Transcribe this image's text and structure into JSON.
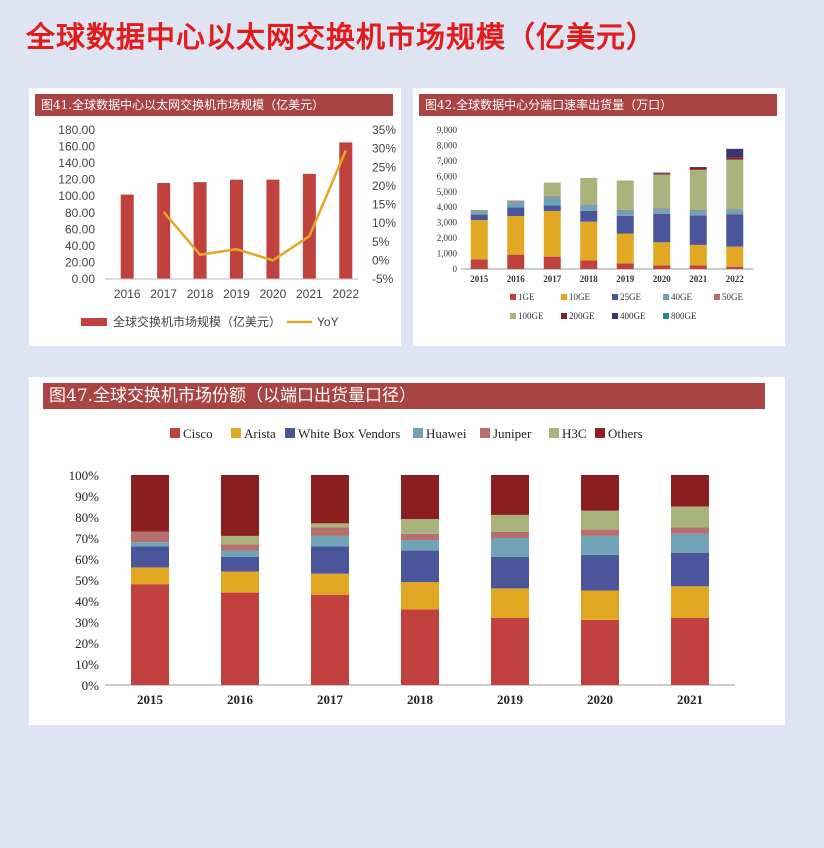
{
  "page_title": "全球数据中心以太网交换机市场规模（亿美元）",
  "colors": {
    "page_title": "#e21b1b",
    "header_bg": "#a94442",
    "bar_red": "#c0413d",
    "yoy_line": "#e3a823"
  },
  "chart_data": [
    {
      "id": "fig41",
      "type": "bar",
      "title": "图41.全球数据中心以太网交换机市场规模（亿美元）",
      "categories": [
        "2016",
        "2017",
        "2018",
        "2019",
        "2020",
        "2021",
        "2022"
      ],
      "series": [
        {
          "name": "全球交换机市场规模（亿美元）",
          "type": "bar",
          "axis": "left",
          "values": [
            102,
            116,
            117,
            120,
            120,
            127,
            165
          ]
        },
        {
          "name": "YoY",
          "type": "line",
          "axis": "right",
          "values": [
            null,
            13.0,
            1.5,
            3.0,
            0.0,
            6.5,
            29.5
          ]
        }
      ],
      "y_left": {
        "min": 0,
        "max": 180,
        "ticks": [
          "0.00",
          "20.00",
          "40.00",
          "60.00",
          "80.00",
          "100.00",
          "120.00",
          "140.00",
          "160.00",
          "180.00"
        ]
      },
      "y_right": {
        "min": -5,
        "max": 35,
        "ticks": [
          "-5%",
          "0%",
          "5%",
          "10%",
          "15%",
          "20%",
          "25%",
          "30%",
          "35%"
        ]
      },
      "legend_position": "bottom",
      "grid": false
    },
    {
      "id": "fig42",
      "type": "bar",
      "stacked": true,
      "title": "图42.全球数据中心分端口速率出货量（万口）",
      "categories": [
        "2015",
        "2016",
        "2017",
        "2018",
        "2019",
        "2020",
        "2021",
        "2022"
      ],
      "series": [
        {
          "name": "1GE",
          "color": "#c0413d",
          "values": [
            620,
            930,
            800,
            560,
            360,
            230,
            230,
            150
          ]
        },
        {
          "name": "10GE",
          "color": "#e3a823",
          "values": [
            2550,
            2500,
            2950,
            2500,
            1930,
            1500,
            1330,
            1300
          ]
        },
        {
          "name": "25GE",
          "color": "#4a559b",
          "values": [
            350,
            550,
            380,
            700,
            1150,
            1850,
            1900,
            2100
          ]
        },
        {
          "name": "40GE",
          "color": "#6fa3b5",
          "values": [
            250,
            380,
            550,
            400,
            350,
            300,
            320,
            300
          ]
        },
        {
          "name": "50GE",
          "color": "#b5706d",
          "values": [
            50,
            60,
            60,
            40,
            40,
            40,
            40,
            30
          ]
        },
        {
          "name": "100GE",
          "color": "#a9b47c",
          "values": [
            0,
            30,
            850,
            1700,
            1900,
            2200,
            2600,
            3200
          ]
        },
        {
          "name": "200GE",
          "color": "#8b1f1f",
          "values": [
            0,
            0,
            0,
            0,
            0,
            80,
            120,
            150
          ]
        },
        {
          "name": "400GE",
          "color": "#3b3671",
          "values": [
            0,
            0,
            0,
            0,
            0,
            40,
            60,
            550
          ]
        },
        {
          "name": "800GE",
          "color": "#2a8a8a",
          "values": [
            0,
            0,
            0,
            0,
            0,
            0,
            0,
            0
          ]
        }
      ],
      "y": {
        "min": 0,
        "max": 9000,
        "ticks": [
          "0",
          "1,000",
          "2,000",
          "3,000",
          "4,000",
          "5,000",
          "6,000",
          "7,000",
          "8,000",
          "9,000"
        ]
      },
      "legend_position": "bottom",
      "grid": false
    },
    {
      "id": "fig47",
      "type": "bar",
      "stacked": true,
      "title": "图47.全球交换机市场份额（以端口出货量口径）",
      "categories": [
        "2015",
        "2016",
        "2017",
        "2018",
        "2019",
        "2020",
        "2021"
      ],
      "series": [
        {
          "name": "Cisco",
          "color": "#c0413d",
          "values": [
            48,
            44,
            43,
            36,
            32,
            31,
            32
          ]
        },
        {
          "name": "Arista",
          "color": "#e3a823",
          "values": [
            8,
            10,
            10,
            13,
            14,
            14,
            15
          ]
        },
        {
          "name": "White Box Vendors",
          "color": "#4a559b",
          "values": [
            10,
            7,
            13,
            15,
            15,
            17,
            16
          ]
        },
        {
          "name": "Huawei",
          "color": "#6fa3b5",
          "values": [
            2,
            3,
            5,
            5,
            9,
            9,
            9
          ]
        },
        {
          "name": "Juniper",
          "color": "#b5706d",
          "values": [
            5,
            3,
            4,
            3,
            3,
            3,
            3
          ]
        },
        {
          "name": "H3C",
          "color": "#a9b47c",
          "values": [
            0,
            4,
            2,
            7,
            8,
            9,
            10
          ]
        },
        {
          "name": "Others",
          "color": "#8b1f1f",
          "values": [
            27,
            29,
            23,
            21,
            19,
            17,
            15
          ]
        }
      ],
      "y": {
        "min": 0,
        "max": 100,
        "ticks": [
          "0%",
          "10%",
          "20%",
          "30%",
          "40%",
          "50%",
          "60%",
          "70%",
          "80%",
          "90%",
          "100%"
        ]
      },
      "legend_position": "top",
      "grid": false
    }
  ]
}
